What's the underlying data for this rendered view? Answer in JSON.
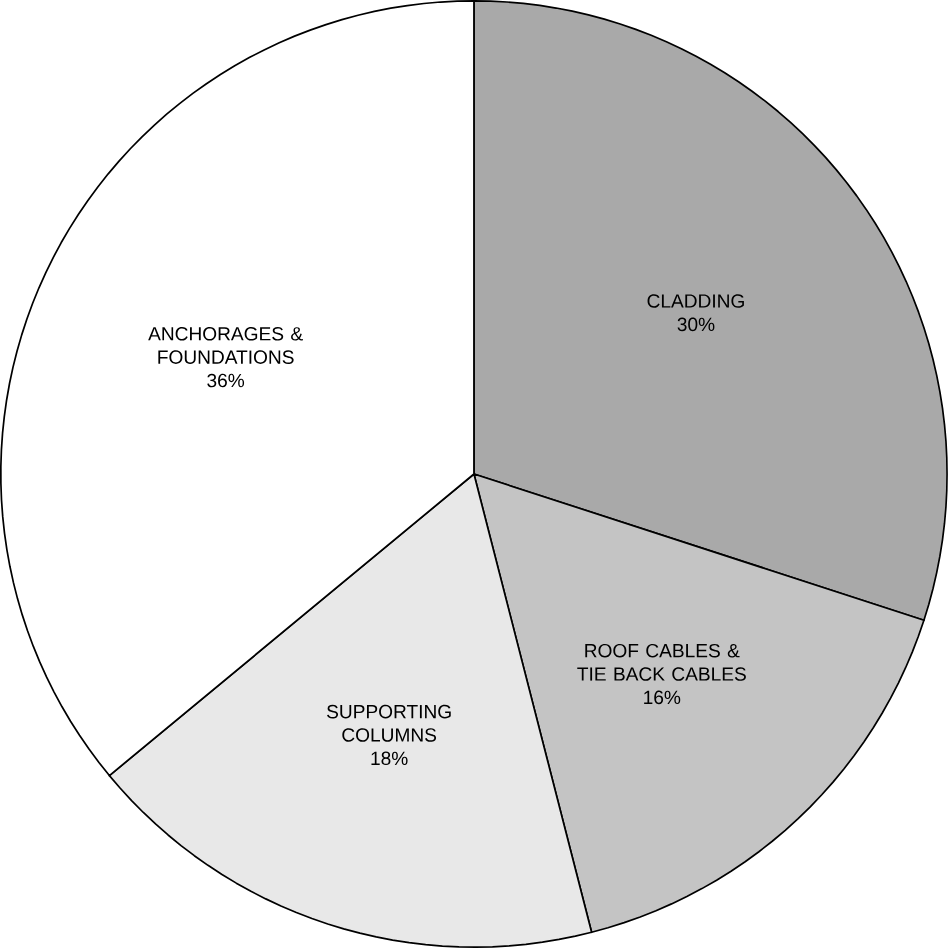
{
  "chart_data": {
    "type": "pie",
    "categories": [
      "CLADDING",
      "ROOF CABLES & TIE BACK CABLES",
      "SUPPORTING COLUMNS",
      "ANCHORAGES & FOUNDATIONS"
    ],
    "values": [
      30,
      16,
      18,
      36
    ],
    "value_labels": [
      "30%",
      "16%",
      "18%",
      "36%"
    ],
    "colors": [
      "#a9a9a9",
      "#c4c4c4",
      "#e8e8e8",
      "#ffffff"
    ]
  }
}
